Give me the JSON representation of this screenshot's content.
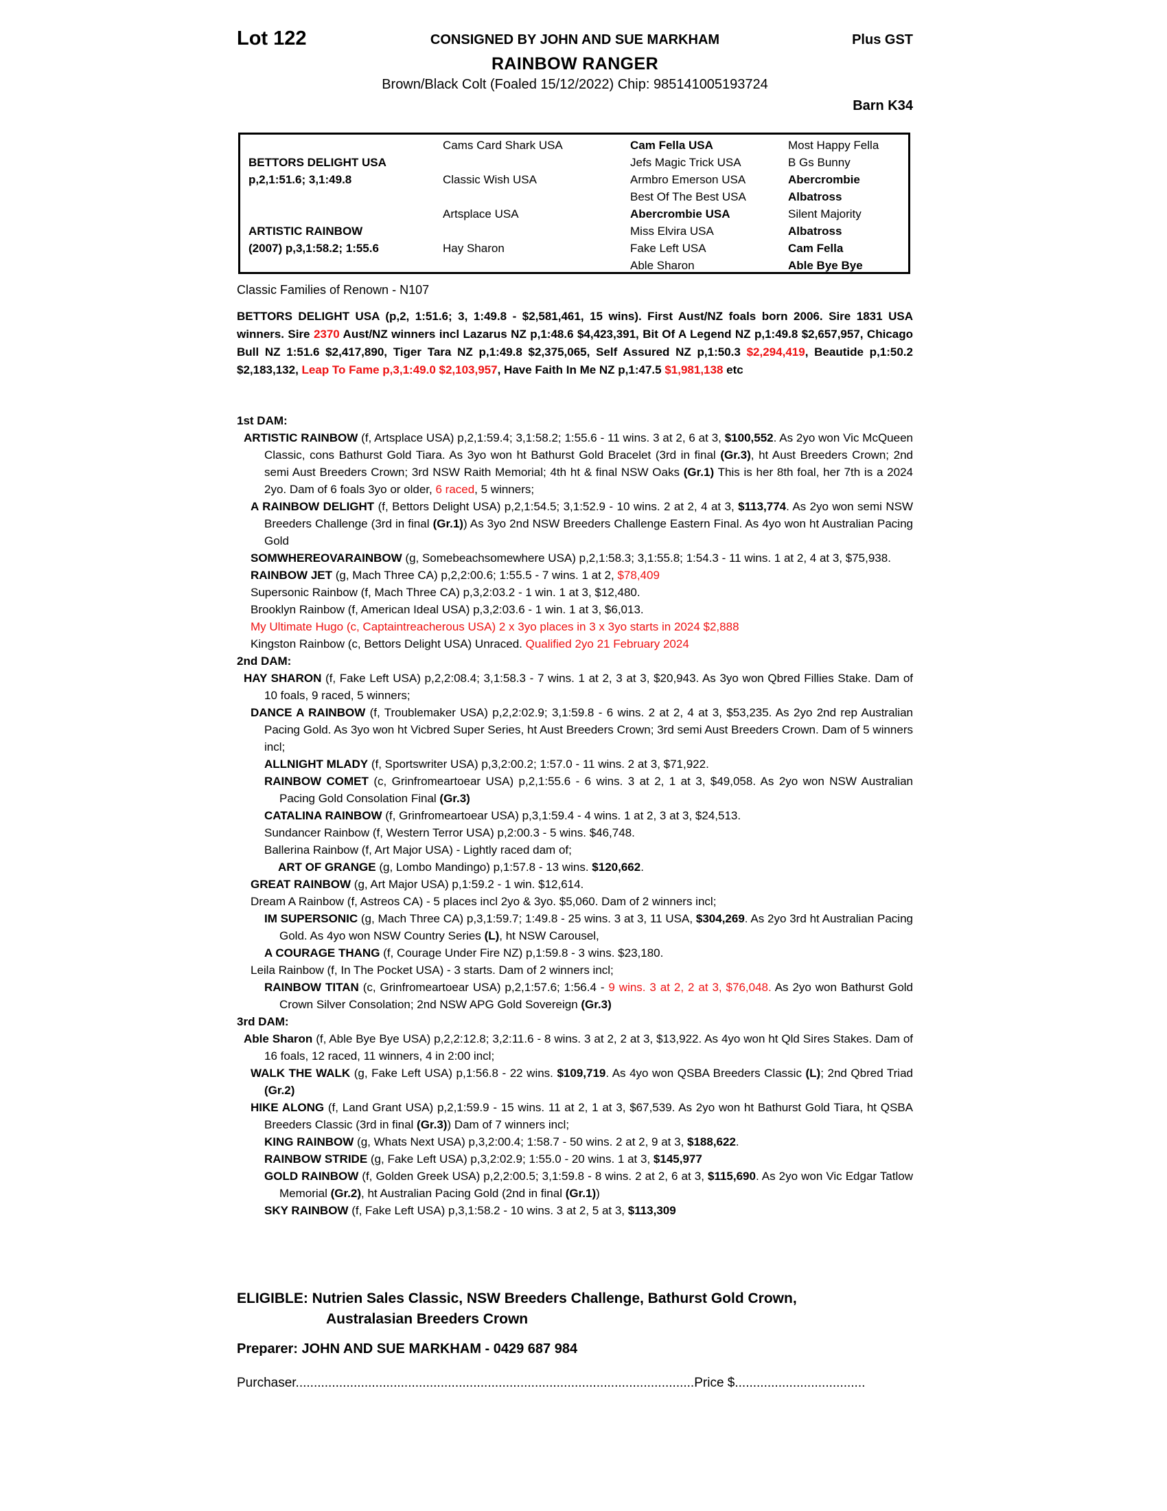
{
  "header": {
    "lot": "Lot 122",
    "consigned": "CONSIGNED BY JOHN AND SUE MARKHAM",
    "plus_gst": "Plus GST",
    "horse_name": "RAINBOW RANGER",
    "description": "Brown/Black Colt (Foaled 15/12/2022) Chip: 985141005193724",
    "barn": "Barn K34"
  },
  "pedigree_table": {
    "columns": [
      [
        {
          "t": ""
        },
        {
          "t": "BETTORS DELIGHT USA",
          "b": 1
        },
        {
          "t": "p,2,1:51.6; 3,1:49.8",
          "b": 1
        },
        {
          "t": ""
        },
        {
          "t": ""
        },
        {
          "t": "ARTISTIC RAINBOW",
          "b": 1
        },
        {
          "t": "(2007) p,3,1:58.2; 1:55.6",
          "b": 1
        },
        {
          "t": ""
        }
      ],
      [
        {
          "t": "Cams Card Shark USA"
        },
        {
          "t": ""
        },
        {
          "t": "Classic Wish USA"
        },
        {
          "t": ""
        },
        {
          "t": "Artsplace USA"
        },
        {
          "t": ""
        },
        {
          "t": "Hay Sharon"
        },
        {
          "t": ""
        }
      ],
      [
        {
          "t": "Cam Fella USA",
          "b": 1
        },
        {
          "t": "Jefs Magic Trick USA"
        },
        {
          "t": "Armbro Emerson USA"
        },
        {
          "t": "Best Of The Best USA"
        },
        {
          "t": "Abercrombie USA",
          "b": 1
        },
        {
          "t": "Miss Elvira USA"
        },
        {
          "t": "Fake Left USA"
        },
        {
          "t": "Able Sharon"
        }
      ],
      [
        {
          "t": "Most Happy Fella"
        },
        {
          "t": "B Gs Bunny"
        },
        {
          "t": "Abercrombie",
          "b": 1
        },
        {
          "t": "Albatross",
          "b": 1
        },
        {
          "t": "Silent Majority"
        },
        {
          "t": "Albatross",
          "b": 1
        },
        {
          "t": "Cam Fella",
          "b": 1
        },
        {
          "t": "Able Bye Bye",
          "b": 1
        }
      ]
    ]
  },
  "classic_families": "Classic Families of Renown - N107",
  "sire_paragraph": {
    "segments": [
      {
        "t": "BETTORS DELIGHT USA (p,2, 1:51.6; 3, 1:49.8 - $2,581,461, 15 wins). First Aust/NZ foals born 2006. Sire 1831 USA winners. Sire ",
        "b": 1
      },
      {
        "t": "2370",
        "b": 1,
        "r": 1
      },
      {
        "t": " Aust/NZ winners incl Lazarus NZ p,1:48.6 $4,423,391, Bit Of A Legend NZ p,1:49.8 $2,657,957, Chicago Bull NZ 1:51.6 $2,417,890, Tiger Tara NZ p,1:49.8 $2,375,065, Self Assured NZ p,1:50.3 ",
        "b": 1
      },
      {
        "t": "$2,294,419",
        "b": 1,
        "r": 1
      },
      {
        "t": ", Beautide p,1:50.2 $2,183,132, ",
        "b": 1
      },
      {
        "t": "Leap To Fame p,3,1:49.0 $2,103,957",
        "b": 1,
        "r": 1
      },
      {
        "t": ", Have Faith In Me NZ p,1:47.5 ",
        "b": 1
      },
      {
        "t": "$1,981,138",
        "b": 1,
        "r": 1
      },
      {
        "t": " etc",
        "b": 1
      }
    ]
  },
  "sections": [
    {
      "heading": "1st DAM:",
      "entries": [
        {
          "indent": 0,
          "segments": [
            {
              "t": "ARTISTIC RAINBOW",
              "b": 1
            },
            {
              "t": " (f, Artsplace USA) p,2,1:59.4; 3,1:58.2; 1:55.6 - 11 wins. 3 at 2, 6 at 3, "
            },
            {
              "t": "$100,552",
              "b": 1
            },
            {
              "t": ". As 2yo won Vic McQueen Classic, cons Bathurst Gold Tiara. As 3yo won ht Bathurst Gold Bracelet (3rd in final "
            },
            {
              "t": "(Gr.3)",
              "b": 1
            },
            {
              "t": ", ht Aust Breeders Crown; 2nd semi Aust Breeders Crown; 3rd NSW Raith Memorial; 4th ht & final NSW Oaks "
            },
            {
              "t": "(Gr.1)",
              "b": 1
            },
            {
              "t": " This is her 8th foal, her 7th is a 2024 2yo. Dam of 6 foals 3yo or older, "
            },
            {
              "t": "6 raced",
              "r": 1
            },
            {
              "t": ", 5 winners;"
            }
          ]
        },
        {
          "indent": 1,
          "segments": [
            {
              "t": "A RAINBOW DELIGHT",
              "b": 1
            },
            {
              "t": " (f, Bettors Delight USA) p,2,1:54.5; 3,1:52.9 - 10 wins. 2 at 2, 4 at 3, "
            },
            {
              "t": "$113,774",
              "b": 1
            },
            {
              "t": ". As 2yo won semi NSW Breeders Challenge (3rd in final "
            },
            {
              "t": "(Gr.1)",
              "b": 1
            },
            {
              "t": ") As 3yo 2nd NSW Breeders Challenge Eastern Final. As 4yo won ht Australian Pacing Gold"
            }
          ]
        },
        {
          "indent": 1,
          "segments": [
            {
              "t": "SOMWHEREOVARAINBOW",
              "b": 1
            },
            {
              "t": " (g, Somebeachsomewhere USA) p,2,1:58.3; 3,1:55.8; 1:54.3 - 11 wins. 1 at 2, 4 at 3, $75,938."
            }
          ]
        },
        {
          "indent": 1,
          "segments": [
            {
              "t": "RAINBOW JET",
              "b": 1
            },
            {
              "t": " (g, Mach Three CA) p,2,2:00.6; 1:55.5 - 7 wins. 1 at 2, "
            },
            {
              "t": "$78,409",
              "r": 1
            }
          ]
        },
        {
          "indent": 1,
          "segments": [
            {
              "t": "Supersonic Rainbow (f, Mach Three CA) p,3,2:03.2 - 1 win. 1 at 3, $12,480."
            }
          ]
        },
        {
          "indent": 1,
          "segments": [
            {
              "t": "Brooklyn Rainbow (f, American Ideal USA) p,3,2:03.6 - 1 win. 1 at 3, $6,013."
            }
          ]
        },
        {
          "indent": 1,
          "segments": [
            {
              "t": "My Ultimate Hugo (c, Captaintreacherous USA) 2 x 3yo places in 3 x 3yo starts in 2024 $2,888",
              "r": 1
            }
          ]
        },
        {
          "indent": 1,
          "segments": [
            {
              "t": "Kingston Rainbow (c, Bettors Delight USA) Unraced. "
            },
            {
              "t": "Qualified 2yo 21 February 2024",
              "r": 1
            }
          ]
        }
      ]
    },
    {
      "heading": "2nd DAM:",
      "entries": [
        {
          "indent": 0,
          "segments": [
            {
              "t": "HAY SHARON",
              "b": 1
            },
            {
              "t": " (f, Fake Left USA) p,2,2:08.4; 3,1:58.3 - 7 wins. 1 at 2, 3 at 3, $20,943. As 3yo won Qbred Fillies Stake. Dam of 10 foals, 9 raced, 5 winners;"
            }
          ]
        },
        {
          "indent": 1,
          "segments": [
            {
              "t": "DANCE A RAINBOW",
              "b": 1
            },
            {
              "t": " (f, Troublemaker USA) p,2,2:02.9; 3,1:59.8 - 6 wins. 2 at 2, 4 at 3, $53,235. As 2yo 2nd rep Australian Pacing Gold. As 3yo won ht Vicbred Super Series, ht Aust Breeders Crown; 3rd semi Aust Breeders Crown. Dam of 5 winners incl;"
            }
          ]
        },
        {
          "indent": 2,
          "segments": [
            {
              "t": "ALLNIGHT MLADY",
              "b": 1
            },
            {
              "t": " (f, Sportswriter USA) p,3,2:00.2; 1:57.0 - 11 wins. 2 at 3, $71,922."
            }
          ]
        },
        {
          "indent": 2,
          "segments": [
            {
              "t": "RAINBOW COMET",
              "b": 1
            },
            {
              "t": " (c, Grinfromeartoear USA) p,2,1:55.6 - 6 wins. 3 at 2, 1 at 3, $49,058. As 2yo won NSW Australian Pacing Gold Consolation Final "
            },
            {
              "t": "(Gr.3)",
              "b": 1
            }
          ]
        },
        {
          "indent": 2,
          "segments": [
            {
              "t": "CATALINA RAINBOW",
              "b": 1
            },
            {
              "t": " (f, Grinfromeartoear USA) p,3,1:59.4 - 4 wins. 1 at 2, 3 at 3, $24,513."
            }
          ]
        },
        {
          "indent": 2,
          "segments": [
            {
              "t": "Sundancer Rainbow (f, Western Terror USA) p,2:00.3 - 5 wins. $46,748."
            }
          ]
        },
        {
          "indent": 2,
          "segments": [
            {
              "t": "Ballerina Rainbow (f, Art Major USA) - Lightly raced dam of;"
            }
          ]
        },
        {
          "indent": 3,
          "segments": [
            {
              "t": "ART OF GRANGE",
              "b": 1
            },
            {
              "t": " (g, Lombo Mandingo) p,1:57.8 - 13 wins. "
            },
            {
              "t": "$120,662",
              "b": 1
            },
            {
              "t": "."
            }
          ]
        },
        {
          "indent": 1,
          "segments": [
            {
              "t": "GREAT RAINBOW",
              "b": 1
            },
            {
              "t": " (g, Art Major USA) p,1:59.2 - 1 win. $12,614."
            }
          ]
        },
        {
          "indent": 1,
          "segments": [
            {
              "t": "Dream A Rainbow (f, Astreos CA) - 5 places incl 2yo & 3yo. $5,060. Dam of 2 winners incl;"
            }
          ]
        },
        {
          "indent": 2,
          "segments": [
            {
              "t": "IM SUPERSONIC",
              "b": 1
            },
            {
              "t": " (g, Mach Three CA) p,3,1:59.7; 1:49.8 - 25 wins. 3 at 3, 11 USA, "
            },
            {
              "t": "$304,269",
              "b": 1
            },
            {
              "t": ". As 2yo 3rd ht Australian Pacing Gold. As 4yo won NSW Country Series "
            },
            {
              "t": "(L)",
              "b": 1
            },
            {
              "t": ", ht NSW Carousel,"
            }
          ]
        },
        {
          "indent": 2,
          "segments": [
            {
              "t": "A COURAGE THANG",
              "b": 1
            },
            {
              "t": " (f, Courage Under Fire NZ) p,1:59.8 - 3 wins. $23,180."
            }
          ]
        },
        {
          "indent": 1,
          "segments": [
            {
              "t": "Leila Rainbow (f, In The Pocket USA) - 3 starts. Dam of 2 winners incl;"
            }
          ]
        },
        {
          "indent": 2,
          "segments": [
            {
              "t": "RAINBOW TITAN",
              "b": 1
            },
            {
              "t": " (c, Grinfromeartoear USA) p,2,1:57.6; 1:56.4 - "
            },
            {
              "t": "9 wins. 3 at 2, 2 at 3, $76,048.",
              "r": 1
            },
            {
              "t": " As 2yo won Bathurst Gold Crown Silver Consolation; 2nd NSW APG Gold Sovereign "
            },
            {
              "t": "(Gr.3)",
              "b": 1
            }
          ]
        }
      ]
    },
    {
      "heading": "3rd DAM:",
      "entries": [
        {
          "indent": 0,
          "segments": [
            {
              "t": "Able Sharon",
              "b": 1
            },
            {
              "t": " (f, Able Bye Bye USA) p,2,2:12.8; 3,2:11.6 - 8 wins. 3 at 2, 2 at 3, $13,922. As 4yo won ht Qld Sires Stakes. Dam of 16 foals, 12 raced, 11 winners, 4 in 2:00 incl;"
            }
          ]
        },
        {
          "indent": 1,
          "segments": [
            {
              "t": "WALK THE WALK",
              "b": 1
            },
            {
              "t": " (g, Fake Left USA) p,1:56.8 - 22 wins. "
            },
            {
              "t": "$109,719",
              "b": 1
            },
            {
              "t": ". As 4yo won QSBA Breeders Classic "
            },
            {
              "t": "(L)",
              "b": 1
            },
            {
              "t": "; 2nd Qbred Triad "
            },
            {
              "t": "(Gr.2)",
              "b": 1
            }
          ]
        },
        {
          "indent": 1,
          "segments": [
            {
              "t": "HIKE ALONG",
              "b": 1
            },
            {
              "t": " (f, Land Grant USA) p,2,1:59.9 - 15 wins. 11 at 2, 1 at 3, $67,539. As 2yo won ht Bathurst Gold Tiara, ht QSBA Breeders Classic (3rd in final "
            },
            {
              "t": "(Gr.3)",
              "b": 1
            },
            {
              "t": ") Dam of 7 winners incl;"
            }
          ]
        },
        {
          "indent": 2,
          "segments": [
            {
              "t": "KING RAINBOW",
              "b": 1
            },
            {
              "t": " (g, Whats Next USA) p,3,2:00.4; 1:58.7 - 50 wins. 2 at 2, 9 at 3, "
            },
            {
              "t": "$188,622",
              "b": 1
            },
            {
              "t": "."
            }
          ]
        },
        {
          "indent": 2,
          "segments": [
            {
              "t": "RAINBOW STRIDE",
              "b": 1
            },
            {
              "t": " (g, Fake Left USA) p,3,2:02.9; 1:55.0 - 20 wins. 1 at 3, "
            },
            {
              "t": "$145,977",
              "b": 1
            }
          ]
        },
        {
          "indent": 2,
          "segments": [
            {
              "t": "GOLD RAINBOW",
              "b": 1
            },
            {
              "t": " (f, Golden Greek USA) p,2,2:00.5; 3,1:59.8 - 8 wins. 2 at 2, 6 at 3, "
            },
            {
              "t": "$115,690",
              "b": 1
            },
            {
              "t": ". As 2yo won Vic Edgar Tatlow Memorial "
            },
            {
              "t": "(Gr.2)",
              "b": 1
            },
            {
              "t": ", ht Australian Pacing Gold (2nd in final "
            },
            {
              "t": "(Gr.1)",
              "b": 1
            },
            {
              "t": ")"
            }
          ]
        },
        {
          "indent": 2,
          "segments": [
            {
              "t": "SKY RAINBOW",
              "b": 1
            },
            {
              "t": " (f, Fake Left USA) p,3,1:58.2 - 10 wins. 3 at 2, 5 at 3, "
            },
            {
              "t": "$113,309",
              "b": 1
            }
          ]
        }
      ]
    }
  ],
  "eligible": {
    "line1": "ELIGIBLE: Nutrien Sales Classic, NSW Breeders Challenge, Bathurst Gold Crown,",
    "line2": "Australasian Breeders Crown"
  },
  "preparer": "Preparer: JOHN AND SUE MARKHAM - 0429 687 984",
  "purchaser": {
    "label": "Purchaser",
    "dots1": "..............................................................................................................",
    "price_label": "Price $",
    "dots2": "...................................."
  }
}
